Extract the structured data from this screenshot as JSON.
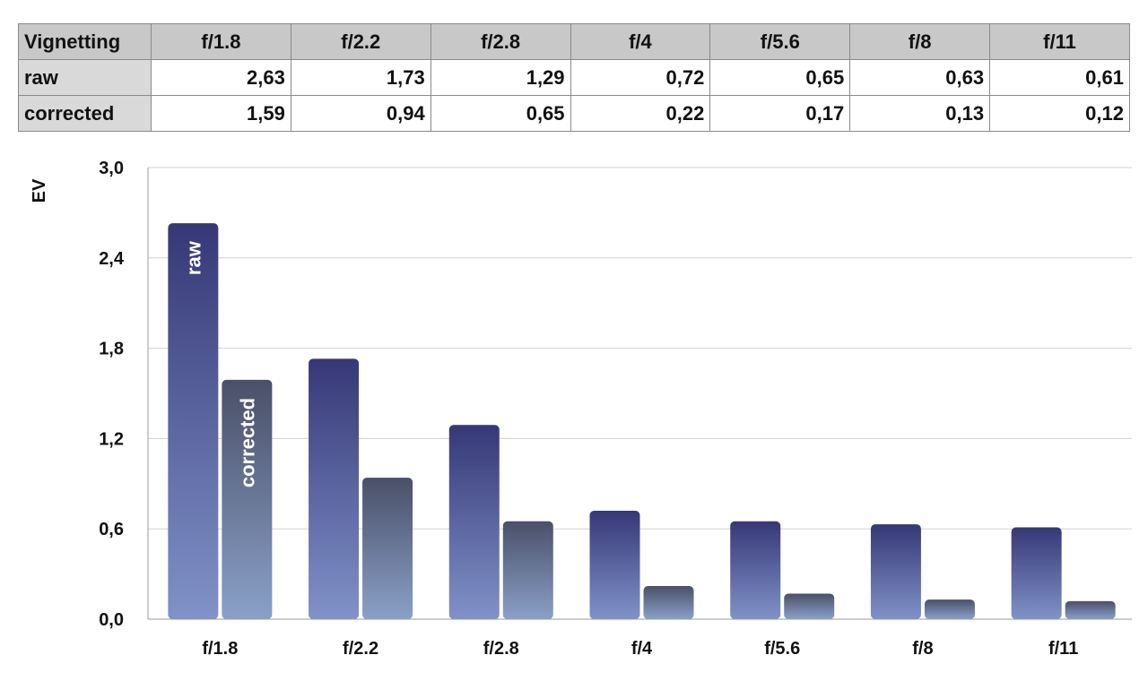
{
  "table": {
    "corner": "Vignetting",
    "columns": [
      "f/1.8",
      "f/2.2",
      "f/2.8",
      "f/4",
      "f/5.6",
      "f/8",
      "f/11"
    ],
    "rows": [
      {
        "label": "raw",
        "values": [
          "2,63",
          "1,73",
          "1,29",
          "0,72",
          "0,65",
          "0,63",
          "0,61"
        ]
      },
      {
        "label": "corrected",
        "values": [
          "1,59",
          "0,94",
          "0,65",
          "0,22",
          "0,17",
          "0,13",
          "0,12"
        ]
      }
    ]
  },
  "chart_data": {
    "type": "bar",
    "categories": [
      "f/1.8",
      "f/2.2",
      "f/2.8",
      "f/4",
      "f/5.6",
      "f/8",
      "f/11"
    ],
    "series": [
      {
        "name": "raw",
        "values": [
          2.63,
          1.73,
          1.29,
          0.72,
          0.65,
          0.63,
          0.61
        ],
        "color": "#3a3d7c"
      },
      {
        "name": "corrected",
        "values": [
          1.59,
          0.94,
          0.65,
          0.22,
          0.17,
          0.13,
          0.12
        ],
        "color": "#4a5070"
      }
    ],
    "ylabel": "EV",
    "ylim": [
      0,
      3
    ],
    "yticks": [
      "0,0",
      "0,6",
      "1,2",
      "1,8",
      "2,4",
      "3,0"
    ],
    "grid": true,
    "legend": "inside-first-bars"
  }
}
